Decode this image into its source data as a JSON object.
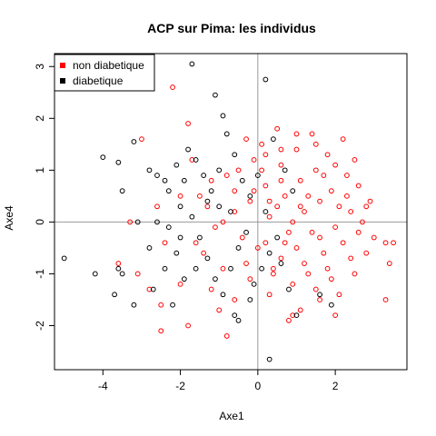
{
  "chart_data": {
    "type": "scatter",
    "title": "ACP sur Pima: les individus",
    "xlabel": "Axe1",
    "ylabel": "Axe4",
    "xlim": [
      -5.25,
      3.85
    ],
    "ylim": [
      -2.85,
      3.25
    ],
    "x_ticks": [
      -4,
      -2,
      0,
      2
    ],
    "y_ticks": [
      -2,
      -1,
      0,
      1,
      2,
      3
    ],
    "reference_lines": {
      "x": 0,
      "y": 0,
      "color": "#999999"
    },
    "legend": {
      "position": "top-left",
      "entries": [
        {
          "label": "non diabetique",
          "color": "#ff0000"
        },
        {
          "label": "diabetique",
          "color": "#000000"
        }
      ]
    },
    "series": [
      {
        "name": "non diabetique",
        "color": "#ff0000",
        "points": [
          [
            -2.2,
            2.6
          ],
          [
            -3.0,
            1.6
          ],
          [
            -1.8,
            1.9
          ],
          [
            -3.3,
            0.0
          ],
          [
            -3.6,
            -0.8
          ],
          [
            -2.8,
            -1.3
          ],
          [
            -2.5,
            -1.6
          ],
          [
            -2.5,
            -2.1
          ],
          [
            -2.0,
            -1.2
          ],
          [
            -1.8,
            -2.0
          ],
          [
            -1.5,
            0.5
          ],
          [
            -1.3,
            0.3
          ],
          [
            -1.1,
            -0.1
          ],
          [
            -1.4,
            -0.6
          ],
          [
            -1.2,
            -1.3
          ],
          [
            -1.0,
            -1.7
          ],
          [
            -0.8,
            -2.2
          ],
          [
            -0.6,
            -1.5
          ],
          [
            -0.8,
            0.9
          ],
          [
            -0.5,
            1.0
          ],
          [
            -0.6,
            0.2
          ],
          [
            -0.4,
            -0.3
          ],
          [
            -0.3,
            -0.8
          ],
          [
            -0.2,
            -1.1
          ],
          [
            -0.3,
            1.6
          ],
          [
            -0.1,
            1.2
          ],
          [
            -0.2,
            0.4
          ],
          [
            0.1,
            1.5
          ],
          [
            0.2,
            0.7
          ],
          [
            0.3,
            0.1
          ],
          [
            0.2,
            -0.4
          ],
          [
            0.4,
            -0.9
          ],
          [
            0.3,
            -1.4
          ],
          [
            0.5,
            1.8
          ],
          [
            0.6,
            1.1
          ],
          [
            0.7,
            0.5
          ],
          [
            0.8,
            -0.2
          ],
          [
            0.6,
            -0.7
          ],
          [
            0.9,
            -1.2
          ],
          [
            0.8,
            -1.9
          ],
          [
            1.0,
            1.4
          ],
          [
            1.1,
            0.8
          ],
          [
            1.2,
            0.2
          ],
          [
            1.0,
            -0.5
          ],
          [
            1.3,
            -1.0
          ],
          [
            1.1,
            -1.7
          ],
          [
            1.4,
            1.7
          ],
          [
            1.5,
            1.0
          ],
          [
            1.6,
            0.4
          ],
          [
            1.4,
            -0.2
          ],
          [
            1.7,
            -0.6
          ],
          [
            1.5,
            -1.3
          ],
          [
            1.8,
            1.3
          ],
          [
            1.9,
            0.6
          ],
          [
            2.0,
            -0.1
          ],
          [
            1.8,
            -0.9
          ],
          [
            2.1,
            -1.4
          ],
          [
            2.2,
            1.6
          ],
          [
            2.3,
            0.9
          ],
          [
            2.4,
            0.2
          ],
          [
            2.2,
            -0.4
          ],
          [
            2.5,
            -1.0
          ],
          [
            2.6,
            0.7
          ],
          [
            2.7,
            0.0
          ],
          [
            2.8,
            -0.6
          ],
          [
            2.5,
            1.2
          ],
          [
            2.9,
            0.4
          ],
          [
            3.0,
            -0.3
          ],
          [
            3.3,
            -0.4
          ],
          [
            3.5,
            -0.4
          ],
          [
            3.4,
            -0.8
          ],
          [
            3.3,
            -1.5
          ],
          [
            2.0,
            -1.8
          ],
          [
            1.6,
            -1.5
          ],
          [
            0.9,
            -1.8
          ],
          [
            0.4,
            -1.0
          ],
          [
            0.0,
            -0.5
          ],
          [
            -0.1,
            0.6
          ],
          [
            0.5,
            0.3
          ],
          [
            0.9,
            0.0
          ],
          [
            1.3,
            0.5
          ],
          [
            1.7,
            0.9
          ],
          [
            2.1,
            0.3
          ],
          [
            2.4,
            -0.7
          ],
          [
            1.9,
            -1.1
          ],
          [
            1.2,
            -0.8
          ],
          [
            0.7,
            -0.4
          ],
          [
            0.3,
            0.4
          ],
          [
            0.1,
            1.0
          ],
          [
            0.6,
            1.4
          ],
          [
            1.0,
            1.7
          ],
          [
            1.5,
            1.5
          ],
          [
            2.0,
            1.1
          ],
          [
            2.3,
            0.5
          ],
          [
            2.6,
            -0.2
          ],
          [
            2.8,
            0.3
          ],
          [
            1.6,
            -0.3
          ],
          [
            1.1,
            0.3
          ],
          [
            0.6,
            0.8
          ],
          [
            0.2,
            1.3
          ],
          [
            -0.6,
            0.6
          ],
          [
            -0.9,
            0.0
          ],
          [
            -1.6,
            -0.4
          ],
          [
            -2.0,
            0.5
          ],
          [
            -2.4,
            -0.4
          ],
          [
            -3.1,
            -1.0
          ],
          [
            -2.6,
            0.3
          ],
          [
            -1.7,
            1.2
          ],
          [
            -1.2,
            0.8
          ],
          [
            -0.9,
            -0.9
          ]
        ]
      },
      {
        "name": "diabetique",
        "color": "#000000",
        "points": [
          [
            -1.7,
            3.05
          ],
          [
            0.2,
            2.75
          ],
          [
            -1.1,
            2.45
          ],
          [
            -0.9,
            2.05
          ],
          [
            -3.2,
            1.55
          ],
          [
            -3.6,
            1.15
          ],
          [
            -4.0,
            1.25
          ],
          [
            -2.8,
            1.0
          ],
          [
            -2.6,
            0.9
          ],
          [
            -2.3,
            0.6
          ],
          [
            -2.0,
            0.3
          ],
          [
            -1.7,
            0.1
          ],
          [
            -3.5,
            0.6
          ],
          [
            -3.1,
            0.0
          ],
          [
            -2.6,
            0.0
          ],
          [
            -2.3,
            -0.1
          ],
          [
            -2.0,
            -0.3
          ],
          [
            -5.0,
            -0.7
          ],
          [
            -4.2,
            -1.0
          ],
          [
            -3.5,
            -1.0
          ],
          [
            -3.7,
            -1.4
          ],
          [
            -3.2,
            -1.6
          ],
          [
            -2.7,
            -1.3
          ],
          [
            -2.4,
            -0.9
          ],
          [
            -2.1,
            -0.6
          ],
          [
            -1.8,
            1.4
          ],
          [
            -1.6,
            1.2
          ],
          [
            -1.4,
            0.9
          ],
          [
            -1.2,
            0.6
          ],
          [
            -1.0,
            0.3
          ],
          [
            -0.8,
            1.7
          ],
          [
            -0.6,
            1.3
          ],
          [
            -0.4,
            0.8
          ],
          [
            -0.2,
            0.5
          ],
          [
            -1.5,
            -0.3
          ],
          [
            -1.3,
            -0.7
          ],
          [
            -1.1,
            -1.1
          ],
          [
            -0.9,
            -1.4
          ],
          [
            -0.7,
            -0.9
          ],
          [
            -0.5,
            -0.5
          ],
          [
            -0.3,
            -0.2
          ],
          [
            -0.1,
            -1.2
          ],
          [
            0.1,
            -0.9
          ],
          [
            0.3,
            -0.6
          ],
          [
            0.5,
            -0.3
          ],
          [
            0.7,
            1.0
          ],
          [
            0.9,
            0.6
          ],
          [
            0.4,
            1.6
          ],
          [
            0.2,
            0.2
          ],
          [
            -1.0,
            1.0
          ],
          [
            0.8,
            -1.3
          ],
          [
            1.0,
            -1.8
          ],
          [
            0.3,
            -2.65
          ],
          [
            -0.6,
            -1.8
          ],
          [
            -0.5,
            -1.9
          ],
          [
            -2.2,
            -1.6
          ],
          [
            -1.9,
            -1.1
          ],
          [
            -3.6,
            -0.9
          ],
          [
            1.6,
            -1.4
          ],
          [
            1.9,
            -1.6
          ],
          [
            -2.4,
            0.8
          ],
          [
            -1.9,
            0.8
          ],
          [
            -2.8,
            -0.5
          ],
          [
            -1.6,
            -0.9
          ],
          [
            -0.2,
            -1.5
          ],
          [
            0.6,
            -0.8
          ],
          [
            -1.3,
            0.4
          ],
          [
            -2.1,
            1.1
          ],
          [
            -0.7,
            0.2
          ],
          [
            0.0,
            0.9
          ]
        ]
      }
    ]
  }
}
